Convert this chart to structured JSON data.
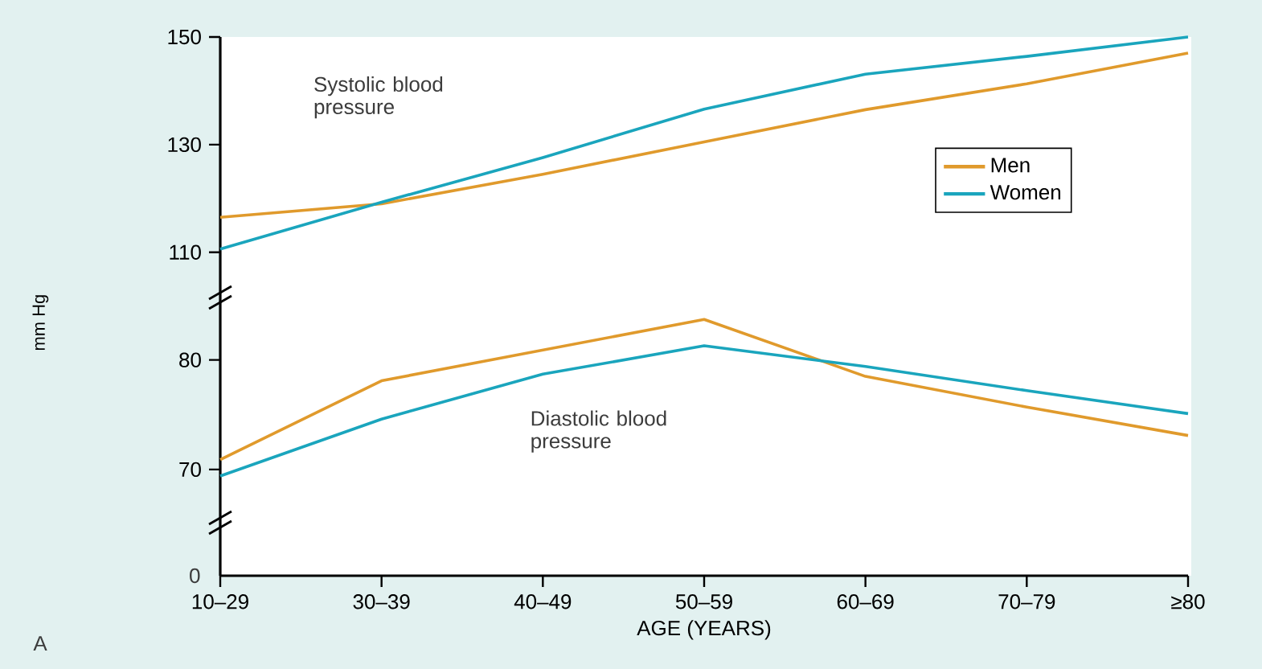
{
  "chart_data": [
    {
      "type": "line",
      "categories": [
        null,
        null,
        null,
        null,
        null,
        null,
        null
      ],
      "ylim": [
        101.6,
        150
      ],
      "yticks": [
        110,
        130,
        150
      ],
      "tick_labels": "y",
      "legend": "right",
      "marker": "none",
      "line_style": "solid",
      "annotations": [
        "Systolic blood pressure"
      ],
      "series": [
        {
          "name": "Men",
          "color": "#e09a2c",
          "values": [
            116.5,
            119,
            124.5,
            130.5,
            136.5,
            141.3,
            147
          ]
        },
        {
          "name": "Women",
          "color": "#1aa5bd",
          "values": [
            110.6,
            119.3,
            127.6,
            136.6,
            143.1,
            146.4,
            150
          ]
        }
      ]
    },
    {
      "type": "line",
      "categories": [
        "10–29",
        "30–39",
        "40–49",
        "50–59",
        "60–69",
        "70–79",
        "≥80"
      ],
      "ylim": [
        60.3,
        85.7
      ],
      "yticks": [
        70,
        80
      ],
      "xlabel": "AGE (YEARS)",
      "ylabel": "mm Hg",
      "marker": "none",
      "line_style": "solid",
      "annotations": [
        "Diastolic blood pressure",
        "0",
        "A"
      ],
      "series": [
        {
          "color": "#e09a2c",
          "values": [
            70.9,
            78.1,
            80.9,
            83.7,
            78.5,
            75.7,
            73.1
          ]
        },
        {
          "color": "#1aa5bd",
          "values": [
            69.4,
            74.6,
            78.7,
            81.3,
            79.4,
            77.2,
            75.1
          ]
        }
      ]
    }
  ]
}
